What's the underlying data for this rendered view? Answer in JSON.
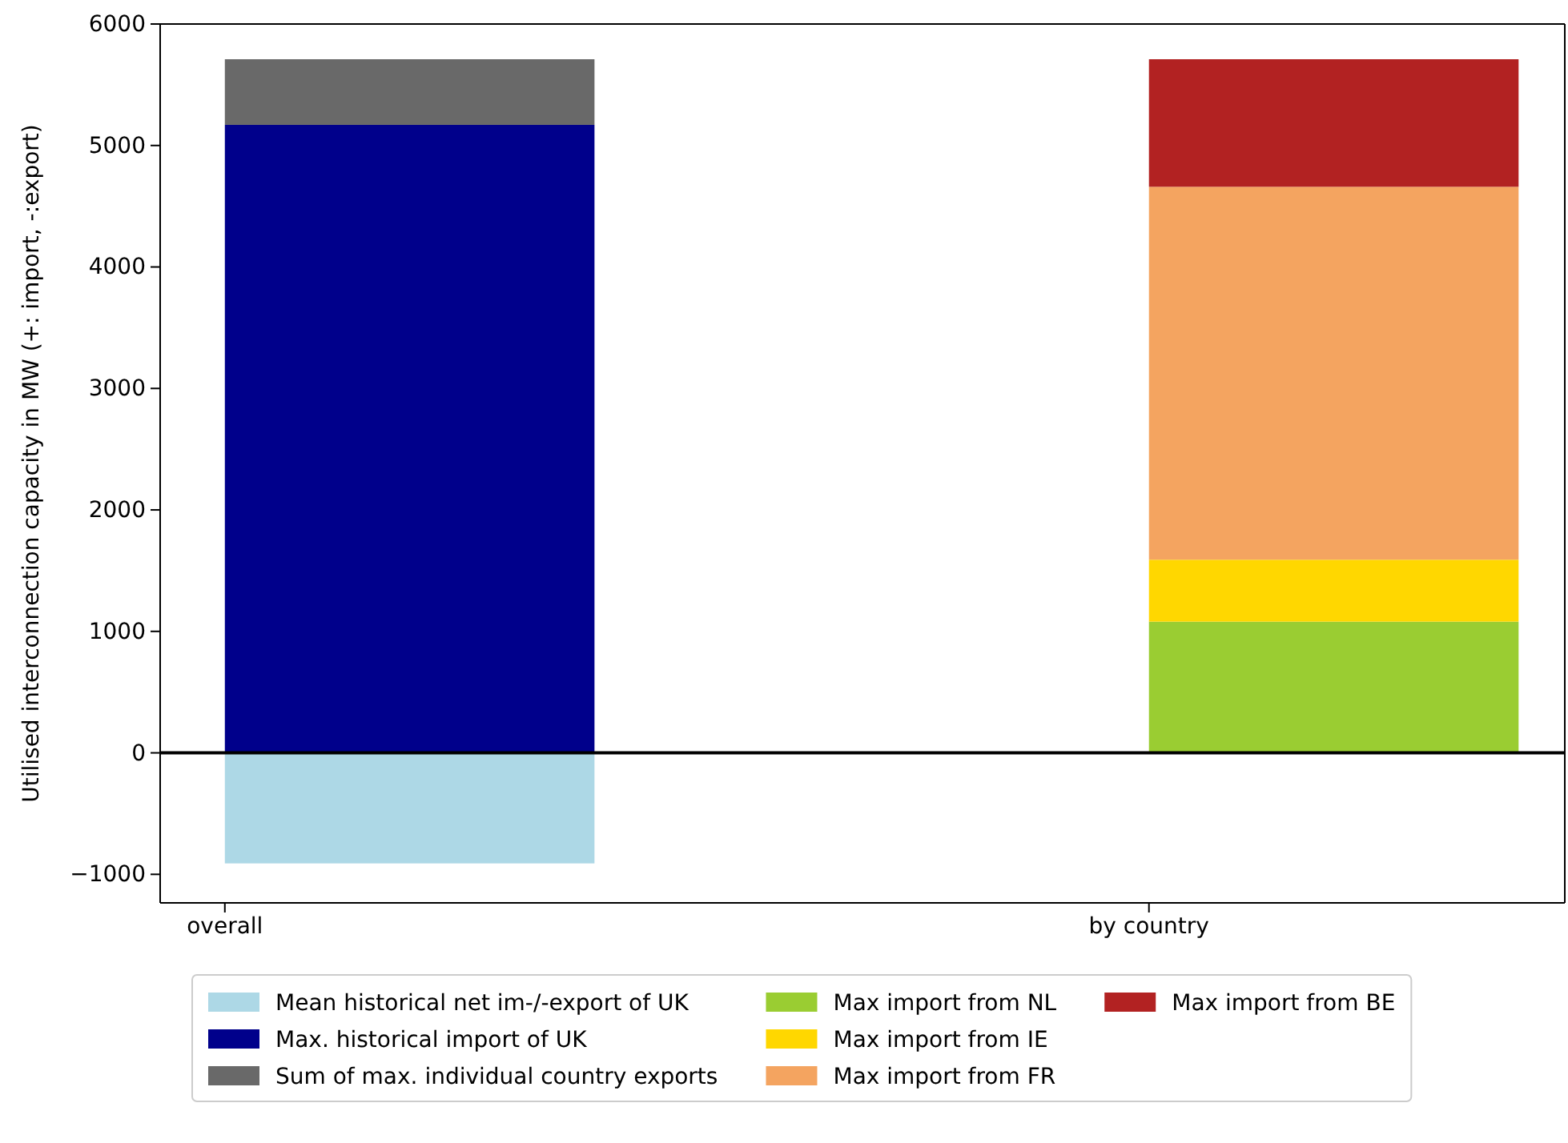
{
  "chart_data": {
    "type": "bar",
    "stacked": true,
    "categories": [
      "overall",
      "by country"
    ],
    "ylabel": "Utilised interconnection capacity in MW (+: import, -:export)",
    "ylim": [
      -1235,
      6000
    ],
    "yticks": [
      {
        "value": -1000,
        "label": "−1000"
      },
      0,
      1000,
      2000,
      3000,
      4000,
      5000,
      6000
    ],
    "grid": false,
    "legend": "bottom",
    "ref_lines": [
      {
        "axis": "y",
        "value": 0,
        "color": "#000000"
      }
    ],
    "series": [
      {
        "name": "Mean historical net im-/-export of UK",
        "color": "#add8e6",
        "values": [
          -910,
          null
        ]
      },
      {
        "name": "Max. historical import of UK",
        "color": "#00008b",
        "values": [
          5170,
          null
        ]
      },
      {
        "name": "Sum of max. individual country exports",
        "color": "#696969",
        "values": [
          540,
          null
        ]
      },
      {
        "name": "Max import from NL",
        "color": "#9acd32",
        "values": [
          null,
          1080
        ]
      },
      {
        "name": "Max import from IE",
        "color": "#ffd700",
        "values": [
          null,
          510
        ]
      },
      {
        "name": "Max import from FR",
        "color": "#f4a460",
        "values": [
          null,
          3070
        ]
      },
      {
        "name": "Max import from BE",
        "color": "#b22222",
        "values": [
          null,
          1050
        ]
      }
    ]
  }
}
